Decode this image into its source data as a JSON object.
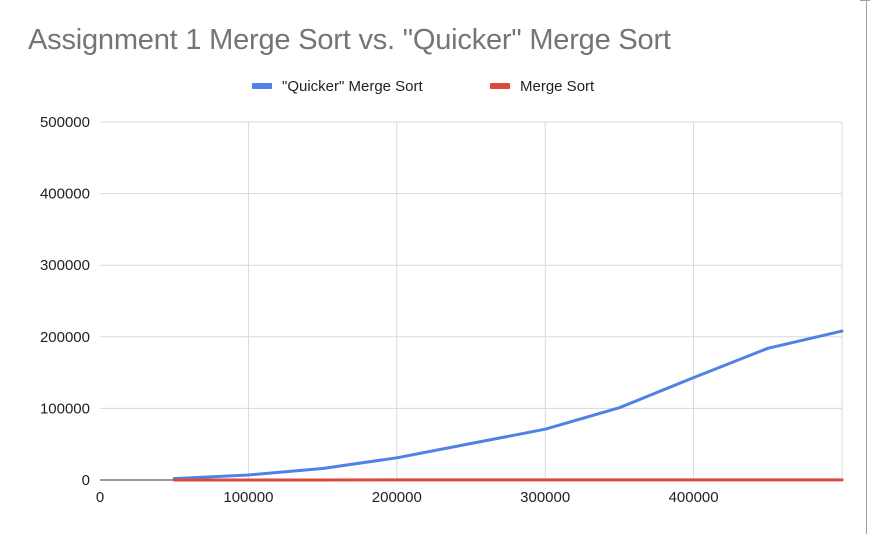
{
  "chart_data": {
    "type": "line",
    "title": "Assignment 1 Merge Sort vs. \"Quicker\" Merge Sort",
    "xlabel": "",
    "ylabel": "",
    "xlim": [
      0,
      500000
    ],
    "ylim": [
      0,
      500000
    ],
    "x_ticks": [
      "0",
      "100000",
      "200000",
      "300000",
      "400000"
    ],
    "y_ticks": [
      "0",
      "100000",
      "200000",
      "300000",
      "400000",
      "500000"
    ],
    "grid": true,
    "legend_position": "top",
    "series": [
      {
        "name": "\"Quicker\" Merge Sort",
        "color": "#4f81e6",
        "x": [
          50000,
          100000,
          150000,
          200000,
          250000,
          300000,
          350000,
          400000,
          450000,
          500000
        ],
        "y": [
          2000,
          7000,
          16000,
          31000,
          51000,
          71000,
          101000,
          143000,
          184000,
          208000
        ]
      },
      {
        "name": "Merge Sort",
        "color": "#dc4a3d",
        "x": [
          50000,
          100000,
          150000,
          200000,
          250000,
          300000,
          350000,
          400000,
          450000,
          500000
        ],
        "y": [
          20,
          40,
          60,
          80,
          100,
          120,
          140,
          160,
          180,
          200
        ]
      }
    ]
  }
}
